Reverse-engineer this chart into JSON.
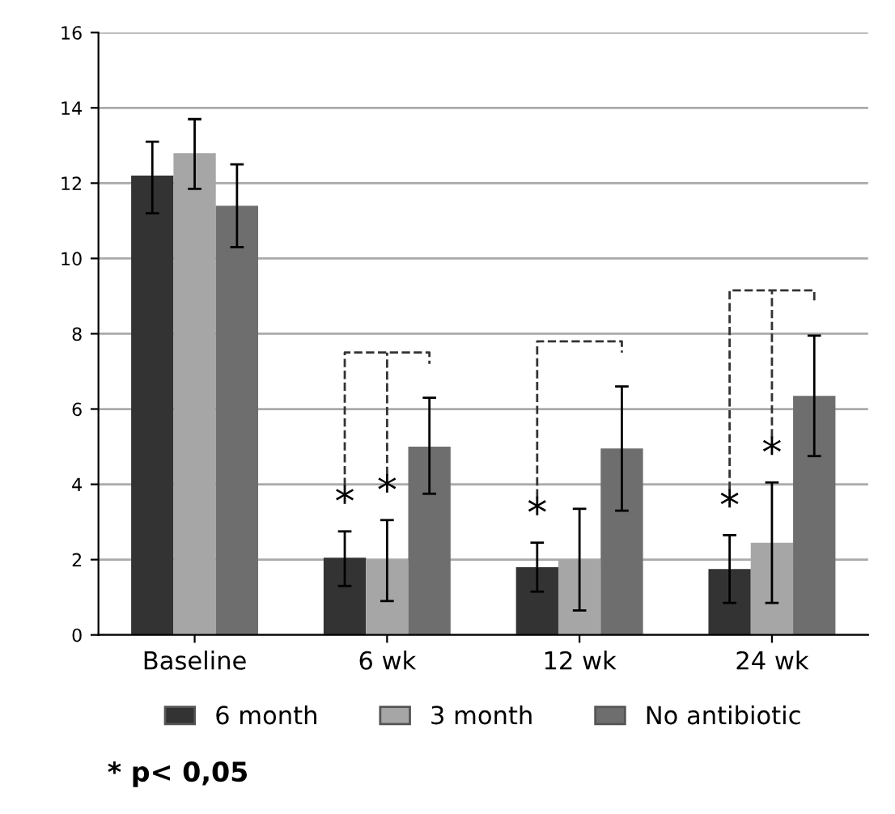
{
  "chart_data": {
    "type": "bar",
    "categories": [
      "Baseline",
      "6 wk",
      "12 wk",
      "24 wk"
    ],
    "series": [
      {
        "name": "6 month",
        "color": "#333333",
        "values": [
          12.2,
          2.05,
          1.8,
          1.75
        ],
        "errors": [
          [
            11.2,
            13.1
          ],
          [
            1.3,
            2.75
          ],
          [
            1.15,
            2.45
          ],
          [
            0.85,
            2.65
          ]
        ],
        "value_labels": [
          null,
          "*",
          "*",
          "*"
        ]
      },
      {
        "name": "3 month",
        "color": "#a6a6a6",
        "values": [
          12.8,
          2.0,
          2.0,
          2.45
        ],
        "errors": [
          [
            11.85,
            13.7
          ],
          [
            0.9,
            3.05
          ],
          [
            0.65,
            3.35
          ],
          [
            0.85,
            4.05
          ]
        ],
        "value_labels": [
          null,
          "*",
          null,
          "*"
        ]
      },
      {
        "name": "No antibiotic",
        "color": "#6e6e6e",
        "values": [
          11.4,
          5.0,
          4.95,
          6.35
        ],
        "errors": [
          [
            10.3,
            12.5
          ],
          [
            3.75,
            6.3
          ],
          [
            3.3,
            6.6
          ],
          [
            4.75,
            7.95
          ]
        ]
      }
    ],
    "ylim": [
      0,
      16
    ],
    "yticks": [
      0,
      2,
      4,
      6,
      8,
      10,
      12,
      14,
      16
    ],
    "grid": "y",
    "legend": "bottom",
    "annotations": [
      "* p< 0,05"
    ]
  }
}
